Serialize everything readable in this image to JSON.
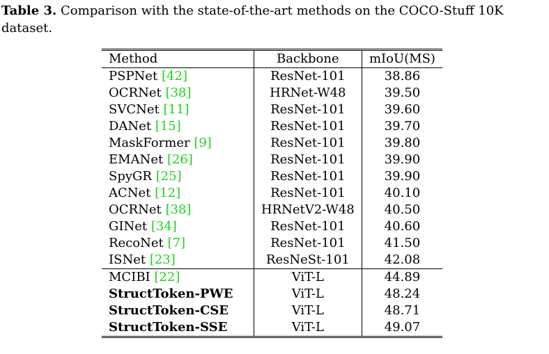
{
  "caption": {
    "label": "Table 3.",
    "text": "Comparison with the state-of-the-art methods on the COCO-Stuff 10K dataset."
  },
  "table": {
    "headers": [
      "Method",
      "Backbone",
      "mIoU(MS)"
    ],
    "rows": [
      {
        "method": "PSPNet",
        "cite": "[42]",
        "backbone": "ResNet-101",
        "miou": "38.86",
        "bold": false,
        "group_start": false
      },
      {
        "method": "OCRNet",
        "cite": "[38]",
        "backbone": "HRNet-W48",
        "miou": "39.50",
        "bold": false,
        "group_start": false
      },
      {
        "method": "SVCNet",
        "cite": "[11]",
        "backbone": "ResNet-101",
        "miou": "39.60",
        "bold": false,
        "group_start": false
      },
      {
        "method": "DANet",
        "cite": "[15]",
        "backbone": "ResNet-101",
        "miou": "39.70",
        "bold": false,
        "group_start": false
      },
      {
        "method": "MaskFormer",
        "cite": "[9]",
        "backbone": "ResNet-101",
        "miou": "39.80",
        "bold": false,
        "group_start": false
      },
      {
        "method": "EMANet",
        "cite": "[26]",
        "backbone": "ResNet-101",
        "miou": "39.90",
        "bold": false,
        "group_start": false
      },
      {
        "method": "SpyGR",
        "cite": "[25]",
        "backbone": "ResNet-101",
        "miou": "39.90",
        "bold": false,
        "group_start": false
      },
      {
        "method": "ACNet",
        "cite": "[12]",
        "backbone": "ResNet-101",
        "miou": "40.10",
        "bold": false,
        "group_start": false
      },
      {
        "method": "OCRNet",
        "cite": "[38]",
        "backbone": "HRNetV2-W48",
        "miou": "40.50",
        "bold": false,
        "group_start": false
      },
      {
        "method": "GINet",
        "cite": "[34]",
        "backbone": "ResNet-101",
        "miou": "40.60",
        "bold": false,
        "group_start": false
      },
      {
        "method": "RecoNet",
        "cite": "[7]",
        "backbone": "ResNet-101",
        "miou": "41.50",
        "bold": false,
        "group_start": false
      },
      {
        "method": "ISNet",
        "cite": "[23]",
        "backbone": "ResNeSt-101",
        "miou": "42.08",
        "bold": false,
        "group_start": false
      },
      {
        "method": "MCIBI",
        "cite": "[22]",
        "backbone": "ViT-L",
        "miou": "44.89",
        "bold": false,
        "group_start": true
      },
      {
        "method": "StructToken-PWE",
        "cite": "",
        "backbone": "ViT-L",
        "miou": "48.24",
        "bold": true,
        "group_start": false
      },
      {
        "method": "StructToken-CSE",
        "cite": "",
        "backbone": "ViT-L",
        "miou": "48.71",
        "bold": true,
        "group_start": false
      },
      {
        "method": "StructToken-SSE",
        "cite": "",
        "backbone": "ViT-L",
        "miou": "49.07",
        "bold": true,
        "group_start": false
      }
    ]
  }
}
